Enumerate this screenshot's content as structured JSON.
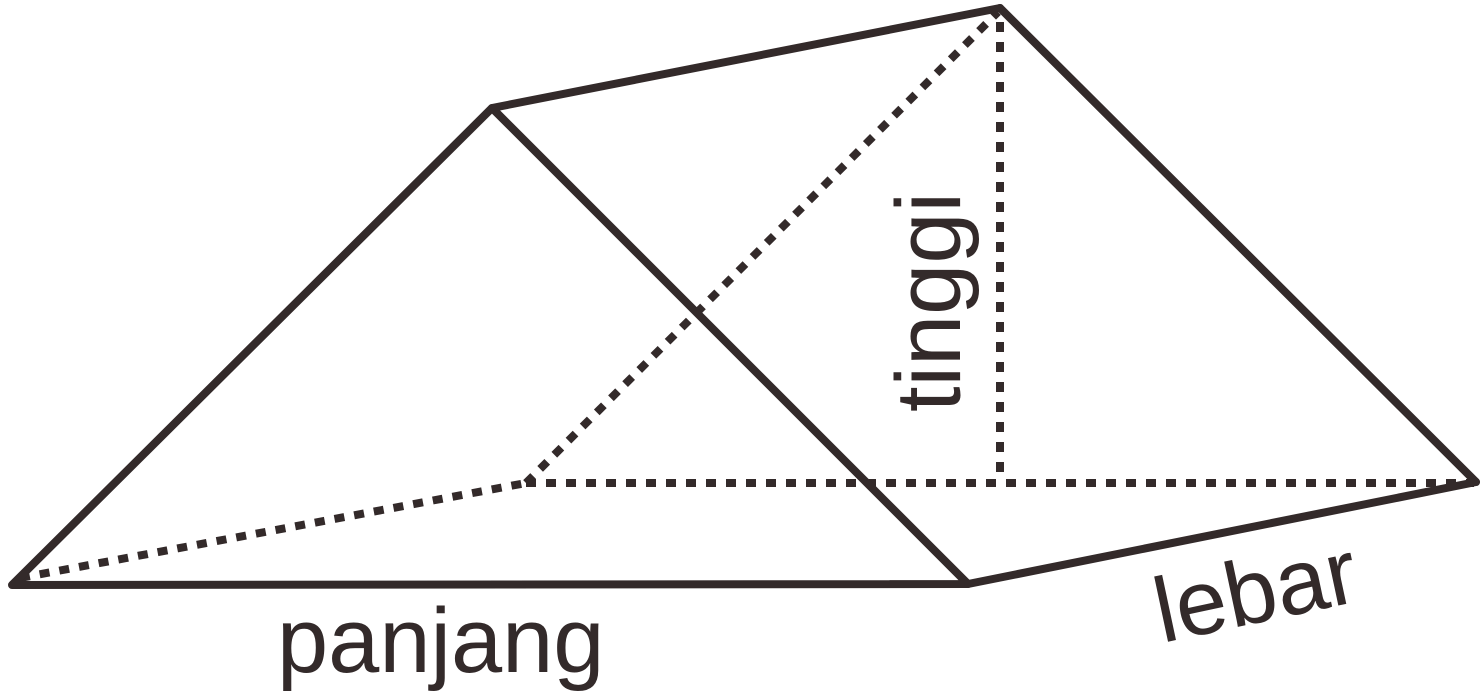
{
  "diagram": {
    "labels": {
      "panjang": "panjang",
      "lebar": "lebar",
      "tinggi": "tinggi"
    },
    "colors": {
      "stroke": "#332a2a",
      "text": "#332a2a",
      "background": "#ffffff"
    }
  }
}
